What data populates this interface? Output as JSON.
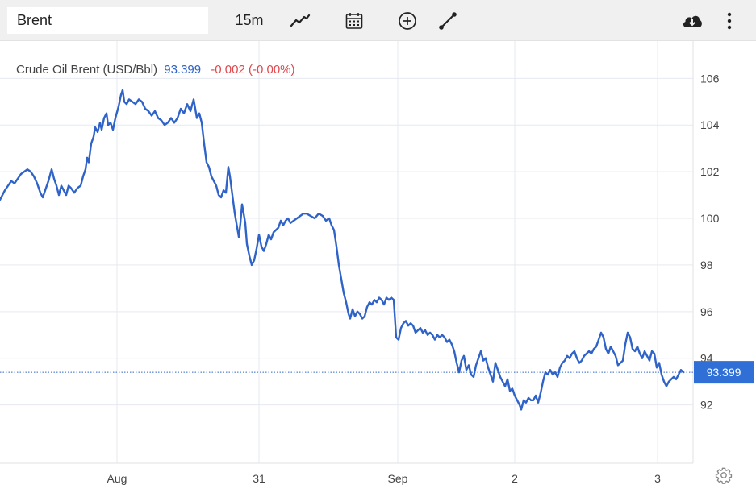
{
  "toolbar": {
    "symbol_value": "Brent",
    "interval": "15m",
    "icons": [
      "line-chart-icon",
      "calendar-icon",
      "add-comparison-icon",
      "draw-line-icon",
      "download-icon",
      "more-options-icon"
    ]
  },
  "legend": {
    "name": "Crude Oil Brent (USD/Bbl)",
    "price": "93.399",
    "change": "-0.002 (-0.00%)"
  },
  "colors": {
    "line": "#2f63c8",
    "change_negative": "#e0474c",
    "price_tag_bg": "#2f6fd6",
    "grid": "#e6e9f0"
  },
  "chart_data": {
    "type": "line",
    "title": "Crude Oil Brent (USD/Bbl)",
    "xlabel": "",
    "ylabel": "",
    "ylim": [
      89.5,
      107.6
    ],
    "y_ticks": [
      106,
      104,
      102,
      100,
      98,
      96,
      94,
      92
    ],
    "x_ticks": [
      {
        "label": "Aug",
        "t": 145
      },
      {
        "label": "31",
        "t": 321
      },
      {
        "label": "Sep",
        "t": 493
      },
      {
        "label": "2",
        "t": 638
      },
      {
        "label": "3",
        "t": 815
      }
    ],
    "x_range": [
      0,
      859
    ],
    "grid": true,
    "last_price": 93.399,
    "series": [
      {
        "values": [
          [
            0,
            100.8
          ],
          [
            6,
            101.2
          ],
          [
            10,
            101.4
          ],
          [
            14,
            101.6
          ],
          [
            18,
            101.5
          ],
          [
            22,
            101.7
          ],
          [
            26,
            101.9
          ],
          [
            30,
            102.0
          ],
          [
            34,
            102.1
          ],
          [
            38,
            102.0
          ],
          [
            42,
            101.8
          ],
          [
            46,
            101.5
          ],
          [
            50,
            101.1
          ],
          [
            53,
            100.9
          ],
          [
            56,
            101.2
          ],
          [
            60,
            101.6
          ],
          [
            64,
            102.1
          ],
          [
            67,
            101.7
          ],
          [
            70,
            101.4
          ],
          [
            73,
            101.0
          ],
          [
            76,
            101.4
          ],
          [
            79,
            101.2
          ],
          [
            82,
            101.0
          ],
          [
            85,
            101.4
          ],
          [
            88,
            101.3
          ],
          [
            92,
            101.1
          ],
          [
            96,
            101.3
          ],
          [
            100,
            101.4
          ],
          [
            103,
            101.8
          ],
          [
            106,
            102.1
          ],
          [
            108,
            102.6
          ],
          [
            110,
            102.4
          ],
          [
            113,
            103.2
          ],
          [
            116,
            103.5
          ],
          [
            118,
            103.9
          ],
          [
            121,
            103.7
          ],
          [
            124,
            104.1
          ],
          [
            126,
            103.8
          ],
          [
            129,
            104.3
          ],
          [
            132,
            104.5
          ],
          [
            134,
            104.0
          ],
          [
            137,
            104.1
          ],
          [
            140,
            103.8
          ],
          [
            143,
            104.3
          ],
          [
            147,
            104.8
          ],
          [
            150,
            105.3
          ],
          [
            152,
            105.5
          ],
          [
            154,
            105.0
          ],
          [
            157,
            104.9
          ],
          [
            160,
            105.1
          ],
          [
            164,
            105.0
          ],
          [
            168,
            104.9
          ],
          [
            172,
            105.1
          ],
          [
            176,
            105.0
          ],
          [
            180,
            104.7
          ],
          [
            184,
            104.6
          ],
          [
            188,
            104.4
          ],
          [
            192,
            104.6
          ],
          [
            196,
            104.3
          ],
          [
            200,
            104.2
          ],
          [
            204,
            104.0
          ],
          [
            208,
            104.1
          ],
          [
            212,
            104.3
          ],
          [
            216,
            104.1
          ],
          [
            220,
            104.3
          ],
          [
            224,
            104.7
          ],
          [
            228,
            104.5
          ],
          [
            232,
            104.9
          ],
          [
            236,
            104.6
          ],
          [
            240,
            105.1
          ],
          [
            244,
            104.3
          ],
          [
            247,
            104.5
          ],
          [
            250,
            104.1
          ],
          [
            253,
            103.2
          ],
          [
            256,
            102.4
          ],
          [
            259,
            102.2
          ],
          [
            262,
            101.8
          ],
          [
            265,
            101.6
          ],
          [
            268,
            101.4
          ],
          [
            271,
            101.0
          ],
          [
            274,
            100.9
          ],
          [
            277,
            101.2
          ],
          [
            280,
            101.1
          ],
          [
            283,
            102.2
          ],
          [
            285,
            101.8
          ],
          [
            288,
            101.0
          ],
          [
            291,
            100.2
          ],
          [
            294,
            99.6
          ],
          [
            296,
            99.2
          ],
          [
            298,
            99.8
          ],
          [
            300,
            100.6
          ],
          [
            302,
            100.2
          ],
          [
            304,
            99.8
          ],
          [
            306,
            98.9
          ],
          [
            309,
            98.4
          ],
          [
            312,
            98.0
          ],
          [
            315,
            98.2
          ],
          [
            318,
            98.7
          ],
          [
            321,
            99.3
          ],
          [
            324,
            98.8
          ],
          [
            327,
            98.6
          ],
          [
            330,
            98.9
          ],
          [
            333,
            99.3
          ],
          [
            336,
            99.1
          ],
          [
            339,
            99.4
          ],
          [
            342,
            99.5
          ],
          [
            345,
            99.6
          ],
          [
            348,
            99.9
          ],
          [
            351,
            99.7
          ],
          [
            354,
            99.9
          ],
          [
            357,
            100.0
          ],
          [
            360,
            99.8
          ],
          [
            364,
            99.9
          ],
          [
            368,
            100.0
          ],
          [
            372,
            100.1
          ],
          [
            376,
            100.2
          ],
          [
            380,
            100.2
          ],
          [
            385,
            100.1
          ],
          [
            390,
            100.0
          ],
          [
            395,
            100.2
          ],
          [
            400,
            100.1
          ],
          [
            404,
            99.9
          ],
          [
            408,
            100.0
          ],
          [
            411,
            99.7
          ],
          [
            414,
            99.5
          ],
          [
            417,
            98.8
          ],
          [
            420,
            98.0
          ],
          [
            423,
            97.4
          ],
          [
            426,
            96.8
          ],
          [
            429,
            96.4
          ],
          [
            432,
            95.9
          ],
          [
            434,
            95.7
          ],
          [
            437,
            96.1
          ],
          [
            440,
            95.8
          ],
          [
            443,
            96.0
          ],
          [
            446,
            95.9
          ],
          [
            449,
            95.7
          ],
          [
            452,
            95.8
          ],
          [
            455,
            96.2
          ],
          [
            458,
            96.4
          ],
          [
            461,
            96.3
          ],
          [
            464,
            96.5
          ],
          [
            467,
            96.4
          ],
          [
            470,
            96.6
          ],
          [
            473,
            96.5
          ],
          [
            476,
            96.3
          ],
          [
            479,
            96.6
          ],
          [
            482,
            96.5
          ],
          [
            485,
            96.6
          ],
          [
            488,
            96.5
          ],
          [
            491,
            94.9
          ],
          [
            494,
            94.8
          ],
          [
            497,
            95.3
          ],
          [
            500,
            95.5
          ],
          [
            503,
            95.6
          ],
          [
            506,
            95.4
          ],
          [
            509,
            95.5
          ],
          [
            512,
            95.4
          ],
          [
            515,
            95.1
          ],
          [
            518,
            95.2
          ],
          [
            521,
            95.3
          ],
          [
            524,
            95.1
          ],
          [
            527,
            95.2
          ],
          [
            530,
            95.0
          ],
          [
            533,
            95.1
          ],
          [
            536,
            95.0
          ],
          [
            539,
            94.8
          ],
          [
            542,
            95.0
          ],
          [
            545,
            94.9
          ],
          [
            548,
            95.0
          ],
          [
            551,
            94.9
          ],
          [
            554,
            94.7
          ],
          [
            557,
            94.8
          ],
          [
            560,
            94.6
          ],
          [
            563,
            94.3
          ],
          [
            566,
            93.8
          ],
          [
            569,
            93.4
          ],
          [
            572,
            93.9
          ],
          [
            575,
            94.1
          ],
          [
            578,
            93.5
          ],
          [
            581,
            93.7
          ],
          [
            584,
            93.3
          ],
          [
            587,
            93.2
          ],
          [
            590,
            93.7
          ],
          [
            593,
            94.0
          ],
          [
            596,
            94.3
          ],
          [
            599,
            93.9
          ],
          [
            602,
            94.0
          ],
          [
            605,
            93.6
          ],
          [
            608,
            93.3
          ],
          [
            611,
            93.0
          ],
          [
            614,
            93.8
          ],
          [
            617,
            93.5
          ],
          [
            620,
            93.2
          ],
          [
            623,
            93.0
          ],
          [
            626,
            92.8
          ],
          [
            629,
            93.1
          ],
          [
            632,
            92.6
          ],
          [
            635,
            92.7
          ],
          [
            638,
            92.4
          ],
          [
            641,
            92.2
          ],
          [
            644,
            92.0
          ],
          [
            646,
            91.8
          ],
          [
            649,
            92.2
          ],
          [
            652,
            92.1
          ],
          [
            655,
            92.3
          ],
          [
            658,
            92.2
          ],
          [
            661,
            92.2
          ],
          [
            664,
            92.4
          ],
          [
            667,
            92.1
          ],
          [
            670,
            92.5
          ],
          [
            673,
            93.0
          ],
          [
            676,
            93.4
          ],
          [
            679,
            93.3
          ],
          [
            682,
            93.5
          ],
          [
            685,
            93.3
          ],
          [
            688,
            93.4
          ],
          [
            691,
            93.2
          ],
          [
            694,
            93.6
          ],
          [
            697,
            93.8
          ],
          [
            700,
            93.9
          ],
          [
            703,
            94.1
          ],
          [
            706,
            94.0
          ],
          [
            709,
            94.2
          ],
          [
            712,
            94.3
          ],
          [
            715,
            94.0
          ],
          [
            718,
            93.8
          ],
          [
            721,
            93.9
          ],
          [
            724,
            94.1
          ],
          [
            727,
            94.2
          ],
          [
            730,
            94.3
          ],
          [
            733,
            94.2
          ],
          [
            736,
            94.4
          ],
          [
            739,
            94.5
          ],
          [
            742,
            94.8
          ],
          [
            745,
            95.1
          ],
          [
            748,
            94.9
          ],
          [
            751,
            94.4
          ],
          [
            754,
            94.2
          ],
          [
            757,
            94.5
          ],
          [
            760,
            94.3
          ],
          [
            763,
            94.1
          ],
          [
            766,
            93.7
          ],
          [
            769,
            93.8
          ],
          [
            772,
            93.9
          ],
          [
            775,
            94.6
          ],
          [
            778,
            95.1
          ],
          [
            781,
            94.9
          ],
          [
            784,
            94.4
          ],
          [
            787,
            94.3
          ],
          [
            790,
            94.5
          ],
          [
            793,
            94.2
          ],
          [
            796,
            94.0
          ],
          [
            799,
            94.3
          ],
          [
            802,
            94.1
          ],
          [
            805,
            93.9
          ],
          [
            808,
            94.3
          ],
          [
            811,
            94.2
          ],
          [
            814,
            93.6
          ],
          [
            817,
            93.8
          ],
          [
            820,
            93.3
          ],
          [
            823,
            93.0
          ],
          [
            826,
            92.8
          ],
          [
            829,
            93.0
          ],
          [
            832,
            93.1
          ],
          [
            835,
            93.2
          ],
          [
            838,
            93.1
          ],
          [
            841,
            93.3
          ],
          [
            844,
            93.5
          ],
          [
            847,
            93.4
          ]
        ]
      }
    ]
  }
}
